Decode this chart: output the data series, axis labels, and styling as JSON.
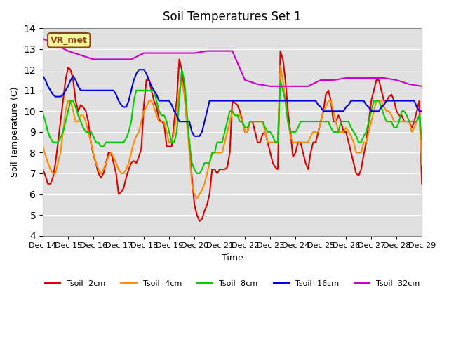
{
  "title": "Soil Temperatures Set 1",
  "xlabel": "Time",
  "ylabel": "Soil Temperature (C)",
  "ylim": [
    4.0,
    14.0
  ],
  "yticks": [
    4.0,
    5.0,
    6.0,
    7.0,
    8.0,
    9.0,
    10.0,
    11.0,
    12.0,
    13.0,
    14.0
  ],
  "x_labels": [
    "Dec 14",
    "Dec 15",
    "Dec 16",
    "Dec 17",
    "Dec 18",
    "Dec 19",
    "Dec 20",
    "Dec 21",
    "Dec 22",
    "Dec 23",
    "Dec 24",
    "Dec 25",
    "Dec 26",
    "Dec 27",
    "Dec 28",
    "Dec 29"
  ],
  "bg_color": "#e0e0e0",
  "annotation_text": "VR_met",
  "annotation_color": "#8B4513",
  "annotation_bg": "#f5f5a0",
  "series": {
    "Tsoil -2cm": {
      "color": "#dd0000",
      "lw": 1.5,
      "data_x": [
        0,
        0.1,
        0.2,
        0.3,
        0.4,
        0.5,
        0.6,
        0.7,
        0.8,
        0.9,
        1.0,
        1.1,
        1.2,
        1.3,
        1.4,
        1.5,
        1.6,
        1.7,
        1.8,
        1.9,
        2.0,
        2.1,
        2.2,
        2.3,
        2.4,
        2.5,
        2.6,
        2.7,
        2.8,
        2.9,
        3.0,
        3.1,
        3.2,
        3.3,
        3.4,
        3.5,
        3.6,
        3.7,
        3.8,
        3.9,
        4.0,
        4.1,
        4.2,
        4.3,
        4.4,
        4.5,
        4.6,
        4.7,
        4.8,
        4.9,
        5.0,
        5.1,
        5.2,
        5.3,
        5.4,
        5.5,
        5.6,
        5.7,
        5.8,
        5.9,
        6.0,
        6.1,
        6.2,
        6.3,
        6.4,
        6.5,
        6.6,
        6.7,
        6.8,
        6.9,
        7.0,
        7.1,
        7.2,
        7.3,
        7.4,
        7.5,
        7.6,
        7.7,
        7.8,
        7.9,
        8.0,
        8.1,
        8.2,
        8.3,
        8.4,
        8.5,
        8.6,
        8.7,
        8.8,
        8.9,
        9.0,
        9.1,
        9.2,
        9.3,
        9.4,
        9.5,
        9.6,
        9.7,
        9.8,
        9.9,
        10.0,
        10.1,
        10.2,
        10.3,
        10.4,
        10.5,
        10.6,
        10.7,
        10.8,
        10.9,
        11.0,
        11.1,
        11.2,
        11.3,
        11.4,
        11.5,
        11.6,
        11.7,
        11.8,
        11.9,
        12.0,
        12.1,
        12.2,
        12.3,
        12.4,
        12.5,
        12.6,
        12.7,
        12.8,
        12.9,
        13.0,
        13.1,
        13.2,
        13.3,
        13.4,
        13.5,
        13.6,
        13.7,
        13.8,
        13.9,
        14.0,
        14.1,
        14.2,
        14.3,
        14.4,
        14.5,
        14.6,
        14.7,
        14.8,
        14.9,
        15.0
      ],
      "data_y": [
        7.2,
        6.9,
        6.5,
        6.5,
        6.8,
        7.5,
        8.5,
        9.5,
        10.5,
        11.5,
        12.1,
        12.0,
        11.5,
        10.5,
        10.0,
        10.3,
        10.2,
        10.0,
        9.5,
        8.5,
        7.9,
        7.5,
        7.0,
        6.8,
        7.0,
        7.5,
        8.0,
        8.0,
        7.5,
        7.0,
        6.0,
        6.1,
        6.3,
        6.8,
        7.2,
        7.5,
        7.6,
        7.5,
        7.8,
        8.2,
        10.3,
        11.5,
        11.5,
        11.0,
        10.5,
        10.2,
        9.6,
        9.5,
        9.4,
        8.3,
        8.3,
        8.3,
        9.5,
        10.5,
        12.5,
        12.0,
        11.0,
        9.5,
        8.5,
        6.8,
        5.5,
        5.0,
        4.7,
        4.8,
        5.2,
        5.5,
        6.0,
        7.2,
        7.2,
        7.0,
        7.2,
        7.2,
        7.2,
        7.3,
        8.0,
        10.5,
        10.4,
        10.3,
        10.0,
        9.5,
        9.0,
        9.0,
        9.5,
        9.5,
        9.0,
        8.5,
        8.5,
        8.9,
        9.0,
        8.5,
        8.0,
        7.5,
        7.3,
        7.2,
        12.9,
        12.5,
        11.5,
        10.0,
        9.0,
        7.8,
        8.0,
        8.5,
        8.5,
        8.0,
        7.5,
        7.2,
        8.0,
        8.5,
        8.5,
        9.0,
        9.5,
        10.0,
        10.8,
        11.0,
        10.5,
        9.5,
        9.5,
        9.8,
        9.5,
        9.0,
        9.0,
        8.5,
        8.0,
        7.5,
        7.0,
        6.9,
        7.2,
        7.9,
        8.5,
        9.5,
        10.5,
        11.0,
        11.5,
        11.5,
        11.0,
        10.5,
        10.5,
        10.7,
        10.8,
        10.5,
        10.0,
        9.8,
        9.8,
        9.5,
        9.5,
        9.5,
        9.2,
        9.5,
        10.0,
        10.5,
        6.5
      ]
    },
    "Tsoil -4cm": {
      "color": "#ff8c00",
      "lw": 1.5,
      "data_x": [
        0,
        0.1,
        0.2,
        0.3,
        0.4,
        0.5,
        0.6,
        0.7,
        0.8,
        0.9,
        1.0,
        1.1,
        1.2,
        1.3,
        1.4,
        1.5,
        1.6,
        1.7,
        1.8,
        1.9,
        2.0,
        2.1,
        2.2,
        2.3,
        2.4,
        2.5,
        2.6,
        2.7,
        2.8,
        2.9,
        3.0,
        3.1,
        3.2,
        3.3,
        3.4,
        3.5,
        3.6,
        3.7,
        3.8,
        3.9,
        4.0,
        4.1,
        4.2,
        4.3,
        4.4,
        4.5,
        4.6,
        4.7,
        4.8,
        4.9,
        5.0,
        5.1,
        5.2,
        5.3,
        5.4,
        5.5,
        5.6,
        5.7,
        5.8,
        5.9,
        6.0,
        6.1,
        6.2,
        6.3,
        6.4,
        6.5,
        6.6,
        6.7,
        6.8,
        6.9,
        7.0,
        7.1,
        7.2,
        7.3,
        7.4,
        7.5,
        7.6,
        7.7,
        7.8,
        7.9,
        8.0,
        8.1,
        8.2,
        8.3,
        8.4,
        8.5,
        8.6,
        8.7,
        8.8,
        8.9,
        9.0,
        9.1,
        9.2,
        9.3,
        9.4,
        9.5,
        9.6,
        9.7,
        9.8,
        9.9,
        10.0,
        10.1,
        10.2,
        10.3,
        10.4,
        10.5,
        10.6,
        10.7,
        10.8,
        10.9,
        11.0,
        11.1,
        11.2,
        11.3,
        11.4,
        11.5,
        11.6,
        11.7,
        11.8,
        11.9,
        12.0,
        12.1,
        12.2,
        12.3,
        12.4,
        12.5,
        12.6,
        12.7,
        12.8,
        12.9,
        13.0,
        13.1,
        13.2,
        13.3,
        13.4,
        13.5,
        13.6,
        13.7,
        13.8,
        13.9,
        14.0,
        14.1,
        14.2,
        14.3,
        14.4,
        14.5,
        14.6,
        14.7,
        14.8,
        14.9,
        15.0
      ],
      "data_y": [
        8.3,
        7.9,
        7.5,
        7.2,
        7.0,
        7.0,
        7.5,
        8.0,
        9.0,
        10.0,
        10.5,
        10.5,
        10.0,
        9.5,
        9.5,
        9.8,
        9.8,
        9.5,
        9.0,
        8.5,
        8.0,
        7.5,
        7.2,
        7.0,
        7.2,
        7.5,
        7.8,
        8.0,
        7.8,
        7.5,
        7.2,
        7.0,
        7.0,
        7.2,
        7.5,
        8.0,
        8.5,
        8.8,
        9.0,
        9.5,
        10.0,
        10.2,
        10.5,
        10.5,
        10.2,
        9.8,
        9.5,
        9.5,
        9.5,
        9.0,
        8.5,
        8.5,
        9.0,
        10.0,
        11.0,
        11.5,
        10.8,
        9.5,
        8.0,
        6.5,
        6.0,
        5.8,
        6.0,
        6.2,
        6.5,
        7.0,
        7.5,
        8.0,
        8.0,
        8.0,
        8.0,
        8.0,
        8.5,
        9.0,
        9.5,
        10.0,
        9.8,
        9.8,
        9.8,
        9.5,
        9.0,
        9.0,
        9.5,
        9.5,
        9.5,
        9.5,
        9.5,
        9.5,
        9.0,
        8.5,
        8.5,
        8.5,
        8.5,
        8.5,
        12.2,
        11.5,
        10.5,
        9.5,
        8.8,
        8.5,
        8.5,
        8.5,
        8.5,
        8.5,
        8.5,
        8.5,
        8.8,
        9.0,
        9.0,
        9.0,
        9.5,
        10.0,
        10.2,
        10.5,
        10.5,
        10.0,
        9.5,
        9.0,
        9.0,
        9.0,
        9.2,
        9.0,
        8.8,
        8.5,
        8.0,
        8.0,
        8.0,
        8.5,
        8.5,
        9.0,
        9.5,
        10.0,
        10.5,
        10.5,
        10.5,
        10.2,
        10.0,
        10.0,
        9.8,
        9.5,
        9.5,
        9.5,
        9.5,
        9.5,
        9.5,
        9.5,
        9.0,
        9.2,
        9.5,
        9.8,
        7.4
      ]
    },
    "Tsoil -8cm": {
      "color": "#00cc00",
      "lw": 1.5,
      "data_x": [
        0,
        0.1,
        0.2,
        0.3,
        0.4,
        0.5,
        0.6,
        0.7,
        0.8,
        0.9,
        1.0,
        1.1,
        1.2,
        1.3,
        1.4,
        1.5,
        1.6,
        1.7,
        1.8,
        1.9,
        2.0,
        2.1,
        2.2,
        2.3,
        2.4,
        2.5,
        2.6,
        2.7,
        2.8,
        2.9,
        3.0,
        3.1,
        3.2,
        3.3,
        3.4,
        3.5,
        3.6,
        3.7,
        3.8,
        3.9,
        4.0,
        4.1,
        4.2,
        4.3,
        4.4,
        4.5,
        4.6,
        4.7,
        4.8,
        4.9,
        5.0,
        5.1,
        5.2,
        5.3,
        5.4,
        5.5,
        5.6,
        5.7,
        5.8,
        5.9,
        6.0,
        6.1,
        6.2,
        6.3,
        6.4,
        6.5,
        6.6,
        6.7,
        6.8,
        6.9,
        7.0,
        7.1,
        7.2,
        7.3,
        7.4,
        7.5,
        7.6,
        7.7,
        7.8,
        7.9,
        8.0,
        8.1,
        8.2,
        8.3,
        8.4,
        8.5,
        8.6,
        8.7,
        8.8,
        8.9,
        9.0,
        9.1,
        9.2,
        9.3,
        9.4,
        9.5,
        9.6,
        9.7,
        9.8,
        9.9,
        10.0,
        10.1,
        10.2,
        10.3,
        10.4,
        10.5,
        10.6,
        10.7,
        10.8,
        10.9,
        11.0,
        11.1,
        11.2,
        11.3,
        11.4,
        11.5,
        11.6,
        11.7,
        11.8,
        11.9,
        12.0,
        12.1,
        12.2,
        12.3,
        12.4,
        12.5,
        12.6,
        12.7,
        12.8,
        12.9,
        13.0,
        13.1,
        13.2,
        13.3,
        13.4,
        13.5,
        13.6,
        13.7,
        13.8,
        13.9,
        14.0,
        14.1,
        14.2,
        14.3,
        14.4,
        14.5,
        14.6,
        14.7,
        14.8,
        14.9,
        15.0
      ],
      "data_y": [
        9.9,
        9.5,
        9.0,
        8.7,
        8.5,
        8.5,
        8.5,
        8.7,
        9.0,
        9.5,
        10.0,
        10.5,
        10.5,
        10.2,
        9.8,
        9.5,
        9.2,
        9.0,
        9.0,
        9.0,
        8.8,
        8.5,
        8.5,
        8.3,
        8.3,
        8.5,
        8.5,
        8.5,
        8.5,
        8.5,
        8.5,
        8.5,
        8.5,
        8.7,
        9.0,
        9.5,
        10.5,
        11.0,
        11.0,
        11.0,
        11.0,
        11.0,
        11.0,
        11.0,
        11.0,
        10.5,
        10.0,
        9.8,
        9.8,
        9.5,
        9.0,
        8.5,
        8.5,
        9.0,
        10.5,
        12.0,
        11.5,
        10.0,
        8.5,
        7.5,
        7.2,
        7.0,
        7.0,
        7.2,
        7.5,
        7.5,
        7.5,
        8.0,
        8.0,
        8.5,
        8.5,
        8.5,
        9.0,
        9.5,
        10.0,
        10.0,
        9.8,
        9.8,
        9.5,
        9.5,
        9.2,
        9.2,
        9.5,
        9.5,
        9.5,
        9.5,
        9.5,
        9.5,
        9.2,
        9.0,
        9.0,
        8.8,
        8.5,
        8.5,
        11.5,
        11.0,
        10.5,
        9.5,
        9.0,
        9.0,
        9.0,
        9.2,
        9.5,
        9.5,
        9.5,
        9.5,
        9.5,
        9.5,
        9.5,
        9.5,
        9.5,
        9.5,
        9.5,
        9.5,
        9.2,
        9.0,
        9.0,
        9.0,
        9.5,
        9.5,
        9.5,
        9.5,
        9.2,
        9.0,
        8.8,
        8.5,
        8.5,
        8.8,
        9.0,
        9.5,
        10.0,
        10.5,
        10.5,
        10.5,
        10.2,
        9.8,
        9.5,
        9.5,
        9.5,
        9.2,
        9.2,
        9.5,
        10.0,
        10.0,
        9.8,
        9.5,
        9.5,
        9.5,
        9.5,
        9.8,
        8.6
      ]
    },
    "Tsoil -16cm": {
      "color": "#0000dd",
      "lw": 1.5,
      "data_x": [
        0,
        0.1,
        0.2,
        0.3,
        0.4,
        0.5,
        0.6,
        0.7,
        0.8,
        0.9,
        1.0,
        1.1,
        1.2,
        1.3,
        1.4,
        1.5,
        1.6,
        1.7,
        1.8,
        1.9,
        2.0,
        2.1,
        2.2,
        2.3,
        2.4,
        2.5,
        2.6,
        2.7,
        2.8,
        2.9,
        3.0,
        3.1,
        3.2,
        3.3,
        3.4,
        3.5,
        3.6,
        3.7,
        3.8,
        3.9,
        4.0,
        4.1,
        4.2,
        4.3,
        4.4,
        4.5,
        4.6,
        4.7,
        4.8,
        4.9,
        5.0,
        5.1,
        5.2,
        5.3,
        5.4,
        5.5,
        5.6,
        5.7,
        5.8,
        5.9,
        6.0,
        6.1,
        6.2,
        6.3,
        6.4,
        6.5,
        6.6,
        6.7,
        6.8,
        6.9,
        7.0,
        7.1,
        7.2,
        7.3,
        7.4,
        7.5,
        7.6,
        7.7,
        7.8,
        7.9,
        8.0,
        8.1,
        8.2,
        8.3,
        8.4,
        8.5,
        8.6,
        8.7,
        8.8,
        8.9,
        9.0,
        9.1,
        9.2,
        9.3,
        9.4,
        9.5,
        9.6,
        9.7,
        9.8,
        9.9,
        10.0,
        10.1,
        10.2,
        10.3,
        10.4,
        10.5,
        10.6,
        10.7,
        10.8,
        10.9,
        11.0,
        11.1,
        11.2,
        11.3,
        11.4,
        11.5,
        11.6,
        11.7,
        11.8,
        11.9,
        12.0,
        12.1,
        12.2,
        12.3,
        12.4,
        12.5,
        12.6,
        12.7,
        12.8,
        12.9,
        13.0,
        13.1,
        13.2,
        13.3,
        13.4,
        13.5,
        13.6,
        13.7,
        13.8,
        13.9,
        14.0,
        14.1,
        14.2,
        14.3,
        14.4,
        14.5,
        14.6,
        14.7,
        14.8,
        14.9,
        15.0
      ],
      "data_y": [
        11.7,
        11.5,
        11.2,
        11.0,
        10.8,
        10.7,
        10.7,
        10.7,
        10.8,
        11.0,
        11.2,
        11.5,
        11.7,
        11.5,
        11.2,
        11.0,
        11.0,
        11.0,
        11.0,
        11.0,
        11.0,
        11.0,
        11.0,
        11.0,
        11.0,
        11.0,
        11.0,
        11.0,
        11.0,
        10.8,
        10.5,
        10.3,
        10.2,
        10.2,
        10.5,
        11.0,
        11.5,
        11.8,
        12.0,
        12.0,
        12.0,
        11.8,
        11.5,
        11.2,
        11.0,
        10.8,
        10.5,
        10.5,
        10.5,
        10.5,
        10.5,
        10.3,
        10.0,
        9.8,
        9.5,
        9.5,
        9.5,
        9.5,
        9.5,
        9.0,
        8.8,
        8.8,
        8.8,
        9.0,
        9.5,
        10.0,
        10.5,
        10.5,
        10.5,
        10.5,
        10.5,
        10.5,
        10.5,
        10.5,
        10.5,
        10.5,
        10.5,
        10.5,
        10.5,
        10.5,
        10.5,
        10.5,
        10.5,
        10.5,
        10.5,
        10.5,
        10.5,
        10.5,
        10.5,
        10.5,
        10.5,
        10.5,
        10.5,
        10.5,
        10.5,
        10.5,
        10.5,
        10.5,
        10.5,
        10.5,
        10.5,
        10.5,
        10.5,
        10.5,
        10.5,
        10.5,
        10.5,
        10.5,
        10.5,
        10.3,
        10.2,
        10.0,
        10.0,
        10.0,
        10.0,
        10.0,
        10.0,
        10.0,
        10.0,
        10.0,
        10.2,
        10.3,
        10.5,
        10.5,
        10.5,
        10.5,
        10.5,
        10.5,
        10.3,
        10.2,
        10.0,
        10.0,
        10.0,
        10.0,
        10.2,
        10.3,
        10.5,
        10.5,
        10.5,
        10.5,
        10.5,
        10.5,
        10.5,
        10.5,
        10.5,
        10.5,
        10.5,
        10.5,
        10.2,
        10.0,
        10.0
      ]
    },
    "Tsoil -32cm": {
      "color": "#cc00cc",
      "lw": 1.5,
      "data_x": [
        0,
        0.5,
        1.0,
        1.5,
        2.0,
        2.5,
        3.0,
        3.5,
        4.0,
        4.5,
        5.0,
        5.5,
        6.0,
        6.5,
        7.0,
        7.5,
        8.0,
        8.5,
        9.0,
        9.5,
        10.0,
        10.5,
        11.0,
        11.5,
        12.0,
        12.5,
        13.0,
        13.5,
        14.0,
        14.5,
        15.0
      ],
      "data_y": [
        13.5,
        13.2,
        12.9,
        12.7,
        12.5,
        12.5,
        12.5,
        12.5,
        12.8,
        12.8,
        12.8,
        12.8,
        12.8,
        12.9,
        12.9,
        12.9,
        11.5,
        11.3,
        11.2,
        11.2,
        11.2,
        11.2,
        11.5,
        11.5,
        11.6,
        11.6,
        11.6,
        11.6,
        11.5,
        11.3,
        11.2
      ]
    }
  }
}
